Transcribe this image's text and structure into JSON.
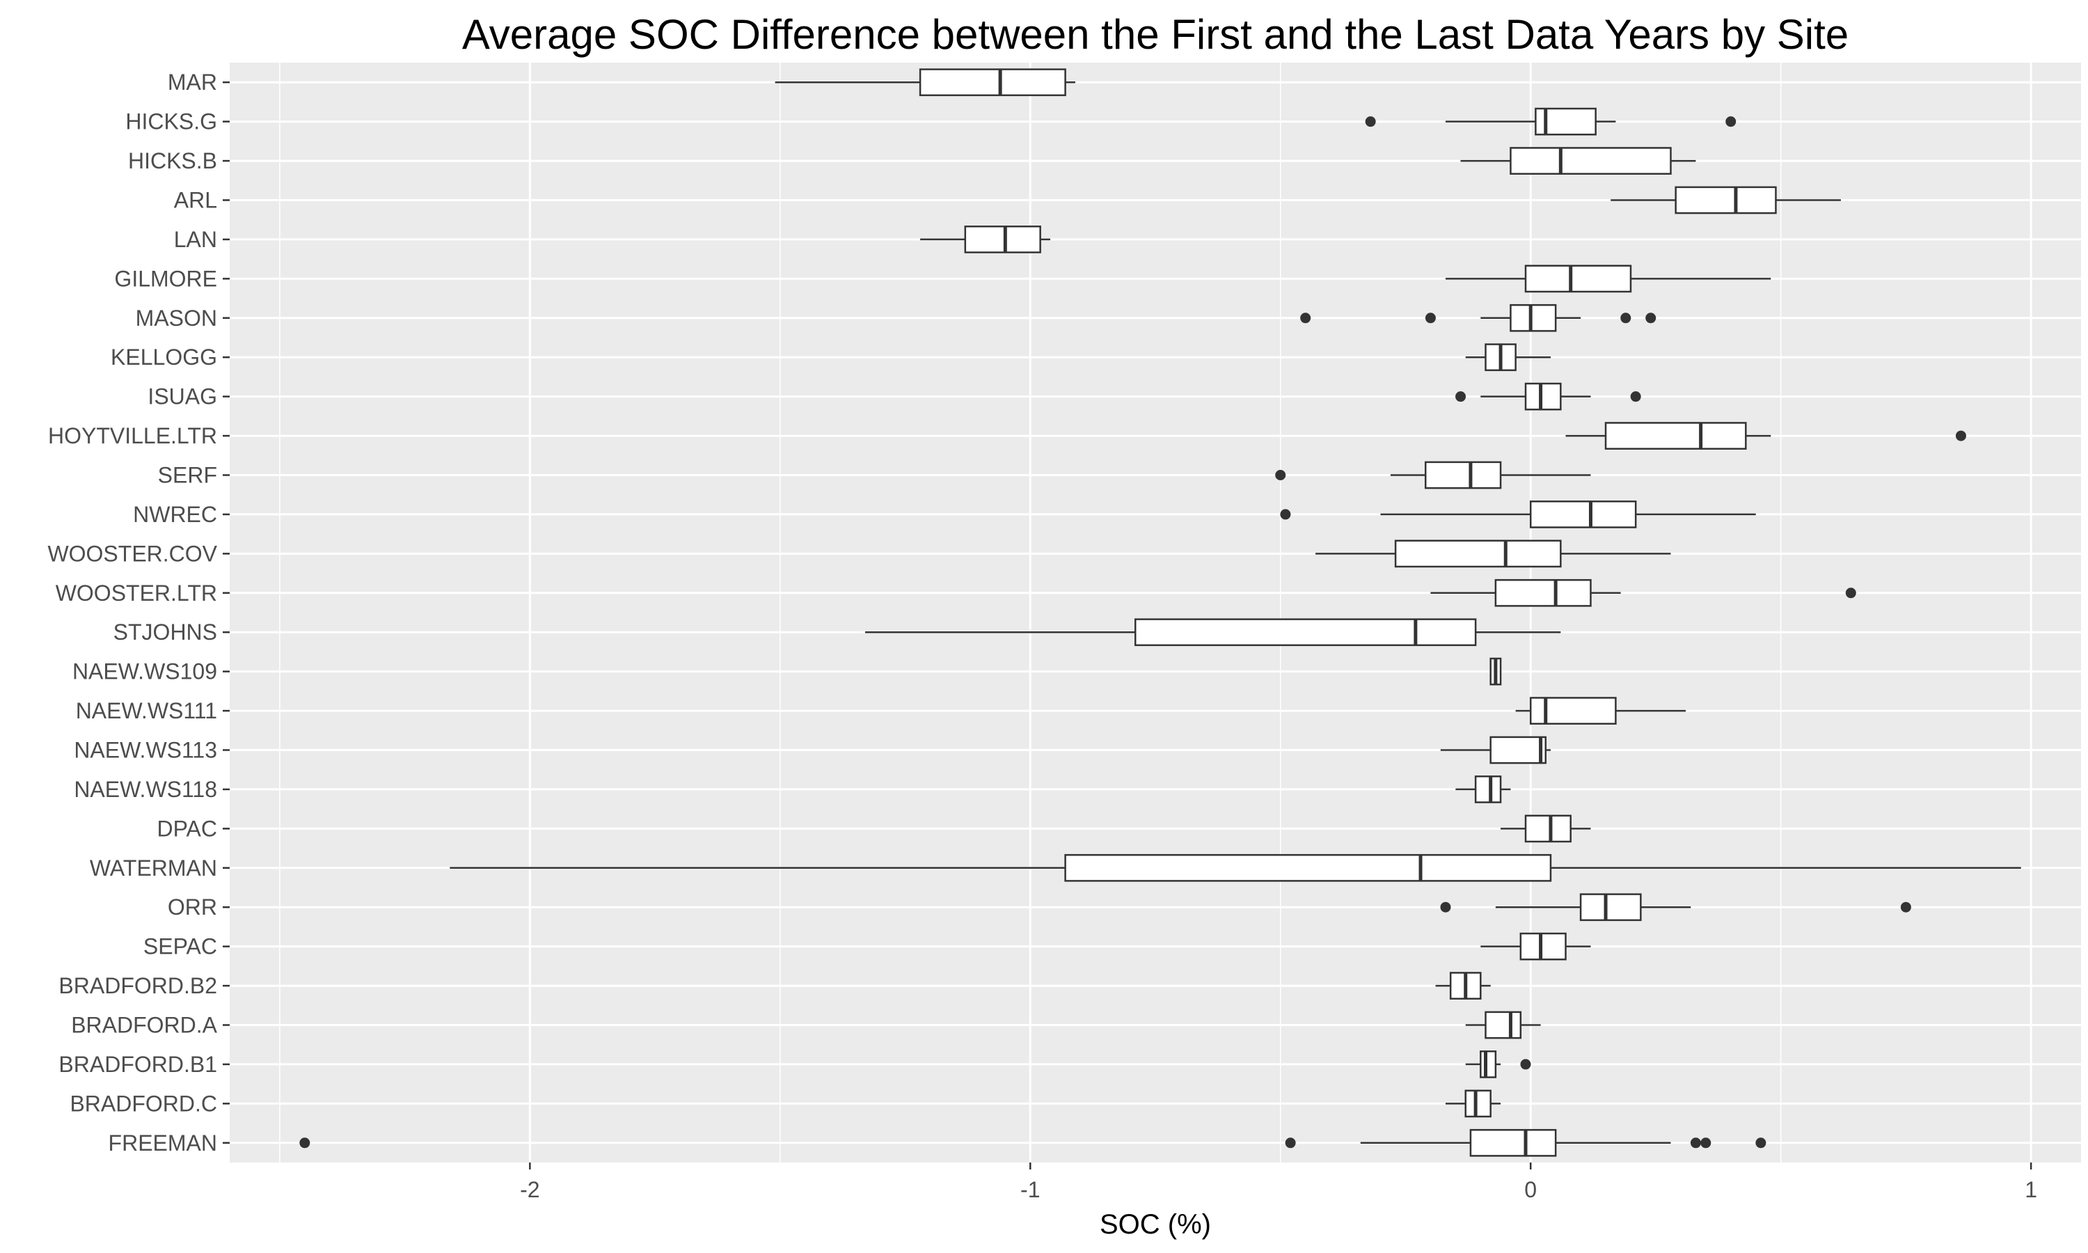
{
  "chart_data": {
    "type": "boxplot",
    "orientation": "horizontal",
    "title": "Average SOC Difference between the First and the Last Data Years by Site",
    "xlabel": "SOC (%)",
    "ylabel": "",
    "xlim": [
      -2.6,
      1.1
    ],
    "xticks": [
      -2,
      -1,
      0,
      1
    ],
    "xtick_labels": [
      "-2",
      "-1",
      "0",
      "1"
    ],
    "grid": true,
    "legend": "none",
    "colors": {
      "panel": "#ebebeb",
      "grid": "#ffffff",
      "box_fill": "#ffffff",
      "box_stroke": "#333333",
      "outlier": "#333333",
      "text": "#4d4d4d"
    },
    "categories": [
      "MAR",
      "HICKS.G",
      "HICKS.B",
      "ARL",
      "LAN",
      "GILMORE",
      "MASON",
      "KELLOGG",
      "ISUAG",
      "HOYTVILLE.LTR",
      "SERF",
      "NWREC",
      "WOOSTER.COV",
      "WOOSTER.LTR",
      "STJOHNS",
      "NAEW.WS109",
      "NAEW.WS111",
      "NAEW.WS113",
      "NAEW.WS118",
      "DPAC",
      "WATERMAN",
      "ORR",
      "SEPAC",
      "BRADFORD.B2",
      "BRADFORD.A",
      "BRADFORD.B1",
      "BRADFORD.C",
      "FREEMAN"
    ],
    "boxes": [
      {
        "site": "MAR",
        "whisker_low": -1.51,
        "q1": -1.22,
        "median": -1.06,
        "q3": -0.93,
        "whisker_high": -0.91,
        "outliers": []
      },
      {
        "site": "HICKS.G",
        "whisker_low": -0.17,
        "q1": 0.01,
        "median": 0.03,
        "q3": 0.13,
        "whisker_high": 0.17,
        "outliers": [
          -0.32,
          0.4
        ]
      },
      {
        "site": "HICKS.B",
        "whisker_low": -0.14,
        "q1": -0.04,
        "median": 0.06,
        "q3": 0.28,
        "whisker_high": 0.33,
        "outliers": []
      },
      {
        "site": "ARL",
        "whisker_low": 0.16,
        "q1": 0.29,
        "median": 0.41,
        "q3": 0.49,
        "whisker_high": 0.62,
        "outliers": []
      },
      {
        "site": "LAN",
        "whisker_low": -1.22,
        "q1": -1.13,
        "median": -1.05,
        "q3": -0.98,
        "whisker_high": -0.96,
        "outliers": []
      },
      {
        "site": "GILMORE",
        "whisker_low": -0.17,
        "q1": -0.01,
        "median": 0.08,
        "q3": 0.2,
        "whisker_high": 0.48,
        "outliers": []
      },
      {
        "site": "MASON",
        "whisker_low": -0.1,
        "q1": -0.04,
        "median": 0.0,
        "q3": 0.05,
        "whisker_high": 0.1,
        "outliers": [
          -0.45,
          -0.2,
          0.19,
          0.24
        ]
      },
      {
        "site": "KELLOGG",
        "whisker_low": -0.13,
        "q1": -0.09,
        "median": -0.06,
        "q3": -0.03,
        "whisker_high": 0.04,
        "outliers": []
      },
      {
        "site": "ISUAG",
        "whisker_low": -0.1,
        "q1": -0.01,
        "median": 0.02,
        "q3": 0.06,
        "whisker_high": 0.12,
        "outliers": [
          -0.14,
          0.21
        ]
      },
      {
        "site": "HOYTVILLE.LTR",
        "whisker_low": 0.07,
        "q1": 0.15,
        "median": 0.34,
        "q3": 0.43,
        "whisker_high": 0.48,
        "outliers": [
          0.86
        ]
      },
      {
        "site": "SERF",
        "whisker_low": -0.28,
        "q1": -0.21,
        "median": -0.12,
        "q3": -0.06,
        "whisker_high": 0.12,
        "outliers": [
          -0.5
        ]
      },
      {
        "site": "NWREC",
        "whisker_low": -0.3,
        "q1": 0.0,
        "median": 0.12,
        "q3": 0.21,
        "whisker_high": 0.45,
        "outliers": [
          -0.49
        ]
      },
      {
        "site": "WOOSTER.COV",
        "whisker_low": -0.43,
        "q1": -0.27,
        "median": -0.05,
        "q3": 0.06,
        "whisker_high": 0.28,
        "outliers": []
      },
      {
        "site": "WOOSTER.LTR",
        "whisker_low": -0.2,
        "q1": -0.07,
        "median": 0.05,
        "q3": 0.12,
        "whisker_high": 0.18,
        "outliers": [
          0.64
        ]
      },
      {
        "site": "STJOHNS",
        "whisker_low": -1.33,
        "q1": -0.79,
        "median": -0.23,
        "q3": -0.11,
        "whisker_high": 0.06,
        "outliers": []
      },
      {
        "site": "NAEW.WS109",
        "whisker_low": -0.08,
        "q1": -0.08,
        "median": -0.07,
        "q3": -0.06,
        "whisker_high": -0.06,
        "outliers": []
      },
      {
        "site": "NAEW.WS111",
        "whisker_low": -0.03,
        "q1": 0.0,
        "median": 0.03,
        "q3": 0.17,
        "whisker_high": 0.31,
        "outliers": []
      },
      {
        "site": "NAEW.WS113",
        "whisker_low": -0.18,
        "q1": -0.08,
        "median": 0.02,
        "q3": 0.03,
        "whisker_high": 0.04,
        "outliers": []
      },
      {
        "site": "NAEW.WS118",
        "whisker_low": -0.15,
        "q1": -0.11,
        "median": -0.08,
        "q3": -0.06,
        "whisker_high": -0.04,
        "outliers": []
      },
      {
        "site": "DPAC",
        "whisker_low": -0.06,
        "q1": -0.01,
        "median": 0.04,
        "q3": 0.08,
        "whisker_high": 0.12,
        "outliers": []
      },
      {
        "site": "WATERMAN",
        "whisker_low": -2.16,
        "q1": -0.93,
        "median": -0.22,
        "q3": 0.04,
        "whisker_high": 0.98,
        "outliers": []
      },
      {
        "site": "ORR",
        "whisker_low": -0.07,
        "q1": 0.1,
        "median": 0.15,
        "q3": 0.22,
        "whisker_high": 0.32,
        "outliers": [
          -0.17,
          0.75
        ]
      },
      {
        "site": "SEPAC",
        "whisker_low": -0.1,
        "q1": -0.02,
        "median": 0.02,
        "q3": 0.07,
        "whisker_high": 0.12,
        "outliers": []
      },
      {
        "site": "BRADFORD.B2",
        "whisker_low": -0.19,
        "q1": -0.16,
        "median": -0.13,
        "q3": -0.1,
        "whisker_high": -0.08,
        "outliers": []
      },
      {
        "site": "BRADFORD.A",
        "whisker_low": -0.13,
        "q1": -0.09,
        "median": -0.04,
        "q3": -0.02,
        "whisker_high": 0.02,
        "outliers": []
      },
      {
        "site": "BRADFORD.B1",
        "whisker_low": -0.13,
        "q1": -0.1,
        "median": -0.09,
        "q3": -0.07,
        "whisker_high": -0.06,
        "outliers": [
          -0.01
        ]
      },
      {
        "site": "BRADFORD.C",
        "whisker_low": -0.17,
        "q1": -0.13,
        "median": -0.11,
        "q3": -0.08,
        "whisker_high": -0.06,
        "outliers": []
      },
      {
        "site": "FREEMAN",
        "whisker_low": -0.34,
        "q1": -0.12,
        "median": -0.01,
        "q3": 0.05,
        "whisker_high": 0.28,
        "outliers": [
          -2.45,
          -0.48,
          0.33,
          0.35,
          0.46
        ]
      }
    ]
  }
}
